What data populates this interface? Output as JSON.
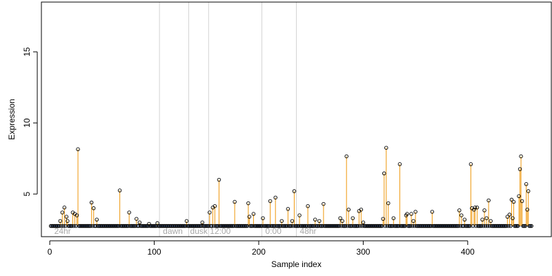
{
  "chart_data": {
    "type": "scatter",
    "title": "",
    "xlabel": "Sample index",
    "ylabel": "Expression",
    "xlim": [
      -8,
      480
    ],
    "ylim": [
      2.0,
      18.5
    ],
    "x_ticks": [
      0,
      100,
      200,
      300,
      400
    ],
    "y_ticks": [
      5,
      10,
      15
    ],
    "baseline": 2.75,
    "colors": {
      "stem": "#f0a020",
      "baseline": "#6f96d6",
      "point_stroke": "#000000",
      "separator": "#d3d3d3",
      "phase_label": "#a8a8a8",
      "axis": "#000000"
    },
    "separators_x": [
      105,
      133,
      152,
      203,
      236
    ],
    "phase_labels": [
      {
        "x": 3,
        "text": "24hr"
      },
      {
        "x": 107,
        "text": "dawn"
      },
      {
        "x": 133,
        "text": "dusk"
      },
      {
        "x": 152,
        "text": "12:00"
      },
      {
        "x": 205,
        "text": "0:00"
      },
      {
        "x": 238,
        "text": "48hr"
      }
    ],
    "n_samples": 461,
    "highlights": [
      [
        10,
        3.1
      ],
      [
        12,
        3.7
      ],
      [
        14,
        4.05
      ],
      [
        16,
        3.4
      ],
      [
        17,
        3.1
      ],
      [
        22,
        3.7
      ],
      [
        24,
        3.6
      ],
      [
        26,
        3.5
      ],
      [
        27,
        8.15
      ],
      [
        40,
        4.4
      ],
      [
        42,
        4.0
      ],
      [
        45,
        3.2
      ],
      [
        67,
        5.25
      ],
      [
        76,
        3.7
      ],
      [
        83,
        3.25
      ],
      [
        86,
        3.0
      ],
      [
        95,
        2.9
      ],
      [
        103,
        2.95
      ],
      [
        131,
        3.1
      ],
      [
        146,
        3.0
      ],
      [
        153,
        3.7
      ],
      [
        156,
        4.05
      ],
      [
        158,
        4.15
      ],
      [
        162,
        6.0
      ],
      [
        177,
        4.45
      ],
      [
        190,
        4.35
      ],
      [
        191,
        3.4
      ],
      [
        195,
        3.6
      ],
      [
        204,
        3.3
      ],
      [
        211,
        4.5
      ],
      [
        216,
        4.75
      ],
      [
        222,
        3.1
      ],
      [
        228,
        3.95
      ],
      [
        232,
        3.1
      ],
      [
        234,
        5.2
      ],
      [
        239,
        3.5
      ],
      [
        247,
        4.15
      ],
      [
        254,
        3.2
      ],
      [
        258,
        3.1
      ],
      [
        262,
        4.3
      ],
      [
        278,
        3.3
      ],
      [
        280,
        3.1
      ],
      [
        284,
        7.65
      ],
      [
        286,
        3.9
      ],
      [
        290,
        3.3
      ],
      [
        296,
        3.8
      ],
      [
        298,
        3.9
      ],
      [
        300,
        3.0
      ],
      [
        319,
        3.25
      ],
      [
        320,
        6.45
      ],
      [
        322,
        8.25
      ],
      [
        324,
        4.35
      ],
      [
        329,
        3.3
      ],
      [
        335,
        7.1
      ],
      [
        341,
        3.5
      ],
      [
        342,
        3.6
      ],
      [
        346,
        3.6
      ],
      [
        348,
        3.1
      ],
      [
        350,
        3.75
      ],
      [
        366,
        3.75
      ],
      [
        392,
        3.85
      ],
      [
        394,
        3.5
      ],
      [
        397,
        3.2
      ],
      [
        403,
        7.1
      ],
      [
        404,
        4.0
      ],
      [
        406,
        3.9
      ],
      [
        407,
        4.05
      ],
      [
        409,
        4.05
      ],
      [
        414,
        3.2
      ],
      [
        416,
        3.85
      ],
      [
        418,
        3.3
      ],
      [
        420,
        4.55
      ],
      [
        422,
        3.1
      ],
      [
        438,
        3.4
      ],
      [
        440,
        3.55
      ],
      [
        442,
        4.6
      ],
      [
        443,
        3.3
      ],
      [
        444,
        4.45
      ],
      [
        449,
        4.85
      ],
      [
        450,
        6.75
      ],
      [
        451,
        7.65
      ],
      [
        452,
        4.5
      ],
      [
        456,
        5.7
      ],
      [
        457,
        3.9
      ],
      [
        458,
        5.2
      ]
    ]
  }
}
